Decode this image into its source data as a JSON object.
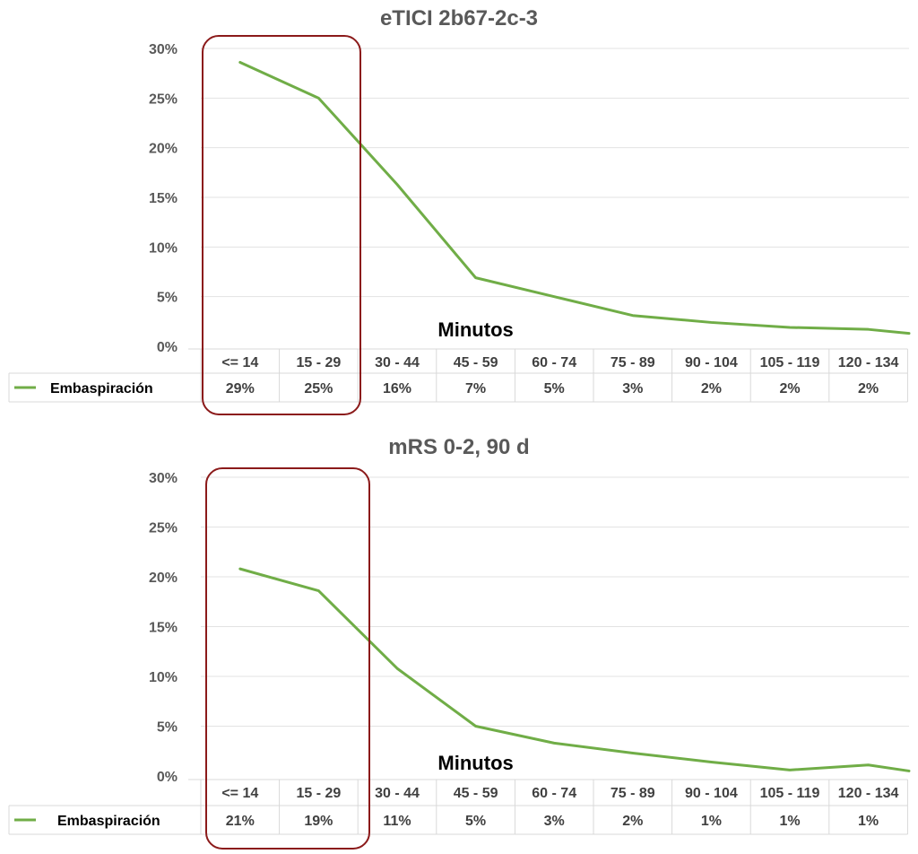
{
  "chart_data": [
    {
      "type": "line",
      "title": "eTICI 2b67-2c-3",
      "xlabel": "Minutos",
      "ylabel": "",
      "ylim": [
        0,
        30
      ],
      "yticks": [
        "0%",
        "5%",
        "10%",
        "15%",
        "20%",
        "25%",
        "30%"
      ],
      "categories": [
        "<= 14",
        "15 - 29",
        "30 - 44",
        "45 - 59",
        "60 - 74",
        "75 - 89",
        "90 - 104",
        "105 - 119",
        "120 - 134"
      ],
      "series": [
        {
          "name": "Embaspiración",
          "values": [
            28.6,
            25.0,
            16.3,
            6.9,
            5.0,
            3.1,
            2.4,
            1.9,
            1.7
          ],
          "labels": [
            "29%",
            "25%",
            "16%",
            "7%",
            "5%",
            "3%",
            "2%",
            "2%",
            "2%"
          ],
          "trailing_value": 1.3
        }
      ],
      "grid": true,
      "legend": "data-table",
      "highlight_categories": [
        "<= 14",
        "15 - 29"
      ]
    },
    {
      "type": "line",
      "title": "mRS 0-2, 90 d",
      "xlabel": "Minutos",
      "ylabel": "",
      "ylim": [
        0,
        30
      ],
      "yticks": [
        "0%",
        "5%",
        "10%",
        "15%",
        "20%",
        "25%",
        "30%"
      ],
      "categories": [
        "<= 14",
        "15 - 29",
        "30 - 44",
        "45 - 59",
        "60 - 74",
        "75 - 89",
        "90 - 104",
        "105 - 119",
        "120 - 134"
      ],
      "series": [
        {
          "name": "Embaspiración",
          "values": [
            20.8,
            18.6,
            10.8,
            5.0,
            3.3,
            2.3,
            1.4,
            0.6,
            1.1
          ],
          "labels": [
            "21%",
            "19%",
            "11%",
            "5%",
            "3%",
            "2%",
            "1%",
            "1%",
            "1%"
          ],
          "trailing_value": 0.5
        }
      ],
      "grid": true,
      "legend": "data-table",
      "highlight_categories": [
        "<= 14",
        "15 - 29"
      ]
    }
  ],
  "colors": {
    "line": "#70ad47",
    "highlight_box": "#8b1a1a",
    "grid": "#e3e3e3",
    "table_border": "#d9d9d9",
    "text": "#595959"
  }
}
